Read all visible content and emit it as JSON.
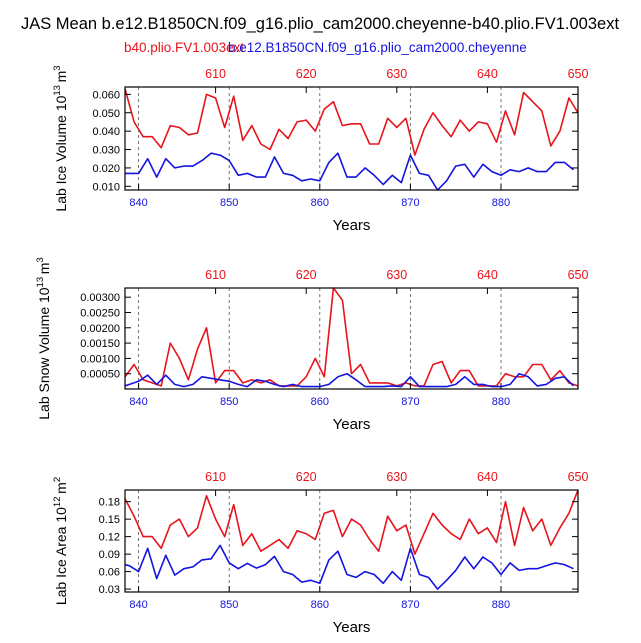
{
  "figure": {
    "title": "JAS Mean b.e12.B1850CN.f09_g16.plio_cam2000.cheyenne-b40.plio.FV1.003ext",
    "legend_red": "b40.plio.FV1.003ext",
    "legend_blue": "b.e12.B1850CN.f09_g16.plio_cam2000.cheyenne"
  },
  "colors": {
    "red": "#e8141c",
    "blue": "#1414e0",
    "axis": "#000000",
    "grid": "#555555"
  },
  "chart_data": [
    {
      "type": "line",
      "ylabel_text": "Lab Ice Volume 10",
      "ylabel_exp": "13",
      "ylabel_unit": "m",
      "ylabel_unit_exp": "3",
      "xlabel": "Years",
      "ylim": [
        0.008,
        0.064
      ],
      "yticks": [
        0.01,
        0.02,
        0.03,
        0.04,
        0.05,
        0.06
      ],
      "ytick_labels": [
        "0.010",
        "0.020",
        "0.030",
        "0.040",
        "0.050",
        "0.060"
      ],
      "bottom_xlim": [
        838.5,
        888.5
      ],
      "bottom_xticks": [
        840,
        850,
        860,
        870,
        880
      ],
      "top_xlim": [
        600,
        650
      ],
      "top_xticks": [
        610,
        620,
        630,
        640,
        650
      ],
      "gridlines_x": [
        840,
        850,
        860,
        870,
        880
      ],
      "series": [
        {
          "color": "red",
          "axis": "top",
          "x": [
            600,
            601,
            602,
            603,
            604,
            605,
            606,
            607,
            608,
            609,
            610,
            611,
            612,
            613,
            614,
            615,
            616,
            617,
            618,
            619,
            620,
            621,
            622,
            623,
            624,
            625,
            626,
            627,
            628,
            629,
            630,
            631,
            632,
            633,
            634,
            635,
            636,
            637,
            638,
            639,
            640,
            641,
            642,
            643,
            644,
            645,
            646,
            647,
            648,
            649,
            650
          ],
          "values": [
            0.063,
            0.045,
            0.037,
            0.037,
            0.031,
            0.043,
            0.042,
            0.038,
            0.039,
            0.06,
            0.058,
            0.042,
            0.059,
            0.035,
            0.043,
            0.033,
            0.03,
            0.041,
            0.036,
            0.045,
            0.046,
            0.04,
            0.052,
            0.056,
            0.043,
            0.044,
            0.044,
            0.033,
            0.033,
            0.047,
            0.042,
            0.047,
            0.027,
            0.041,
            0.05,
            0.043,
            0.037,
            0.046,
            0.04,
            0.045,
            0.044,
            0.034,
            0.051,
            0.038,
            0.061,
            0.056,
            0.051,
            0.032,
            0.04,
            0.058,
            0.05
          ]
        },
        {
          "color": "blue",
          "axis": "bottom",
          "x": [
            838.5,
            839,
            840,
            841,
            842,
            843,
            844,
            845,
            846,
            847,
            848,
            849,
            850,
            851,
            852,
            853,
            854,
            855,
            856,
            857,
            858,
            859,
            860,
            861,
            862,
            863,
            864,
            865,
            866,
            867,
            868,
            869,
            870,
            871,
            872,
            873,
            874,
            875,
            876,
            877,
            878,
            879,
            880,
            881,
            882,
            883,
            884,
            885,
            886,
            887,
            888
          ],
          "values": [
            0.017,
            0.017,
            0.017,
            0.025,
            0.015,
            0.025,
            0.02,
            0.021,
            0.021,
            0.024,
            0.028,
            0.027,
            0.024,
            0.016,
            0.017,
            0.015,
            0.015,
            0.026,
            0.017,
            0.016,
            0.013,
            0.014,
            0.013,
            0.023,
            0.028,
            0.015,
            0.015,
            0.02,
            0.016,
            0.011,
            0.016,
            0.012,
            0.027,
            0.017,
            0.016,
            0.008,
            0.013,
            0.021,
            0.022,
            0.015,
            0.022,
            0.018,
            0.016,
            0.019,
            0.018,
            0.02,
            0.018,
            0.018,
            0.023,
            0.023,
            0.019
          ]
        }
      ]
    },
    {
      "type": "line",
      "ylabel_text": "Lab Snow Volume 10",
      "ylabel_exp": "13",
      "ylabel_unit": "m",
      "ylabel_unit_exp": "3",
      "xlabel": "Years",
      "ylim": [
        0.0,
        0.0033
      ],
      "yticks": [
        0.0005,
        0.001,
        0.0015,
        0.002,
        0.0025,
        0.003
      ],
      "ytick_labels": [
        "0.00050",
        "0.00100",
        "0.00150",
        "0.00200",
        "0.00250",
        "0.00300"
      ],
      "bottom_xlim": [
        838.5,
        888.5
      ],
      "bottom_xticks": [
        840,
        850,
        860,
        870,
        880
      ],
      "top_xlim": [
        600,
        650
      ],
      "top_xticks": [
        610,
        620,
        630,
        640,
        650
      ],
      "gridlines_x": [
        840,
        850,
        860,
        870,
        880
      ],
      "series": [
        {
          "color": "red",
          "axis": "top",
          "x": [
            600,
            601,
            602,
            603,
            604,
            605,
            606,
            607,
            608,
            609,
            610,
            611,
            612,
            613,
            614,
            615,
            616,
            617,
            618,
            619,
            620,
            621,
            622,
            623,
            624,
            625,
            626,
            627,
            628,
            629,
            630,
            631,
            632,
            633,
            634,
            635,
            636,
            637,
            638,
            639,
            640,
            641,
            642,
            643,
            644,
            645,
            646,
            647,
            648,
            649,
            650
          ],
          "values": [
            0.0004,
            0.0008,
            0.0003,
            0.0002,
            0.0001,
            0.0015,
            0.001,
            0.0003,
            0.0013,
            0.002,
            0.0002,
            0.0006,
            0.0006,
            0.0002,
            0.0003,
            0.0002,
            0.0003,
            0.0001,
            0.0001,
            0.0001,
            0.0004,
            0.001,
            0.0004,
            0.0033,
            0.0029,
            0.0005,
            0.0008,
            0.0002,
            0.0002,
            0.0002,
            0.0001,
            0.0002,
            0.0001,
            0.0001,
            0.0008,
            0.0009,
            0.0002,
            0.0006,
            0.0006,
            0.0001,
            0.0001,
            0.0001,
            0.0005,
            0.0004,
            0.0004,
            0.0008,
            0.0008,
            0.0003,
            0.0006,
            0.0002,
            0.0001
          ]
        },
        {
          "color": "blue",
          "axis": "bottom",
          "x": [
            838.5,
            839,
            840,
            841,
            842,
            843,
            844,
            845,
            846,
            847,
            848,
            849,
            850,
            851,
            852,
            853,
            854,
            855,
            856,
            857,
            858,
            859,
            860,
            861,
            862,
            863,
            864,
            865,
            866,
            867,
            868,
            869,
            870,
            871,
            872,
            873,
            874,
            875,
            876,
            877,
            878,
            879,
            880,
            881,
            882,
            883,
            884,
            885,
            886,
            887,
            888
          ],
          "values": [
            0.0001,
            0.00015,
            0.00025,
            0.00045,
            0.00015,
            0.00045,
            0.00015,
            8e-05,
            0.00015,
            0.0004,
            0.00035,
            0.0003,
            0.00025,
            0.00015,
            8e-05,
            0.0003,
            0.00025,
            0.00015,
            8e-05,
            0.00015,
            8e-05,
            8e-05,
            8e-05,
            0.00015,
            0.0004,
            0.0005,
            0.0003,
            8e-05,
            8e-05,
            8e-05,
            0.0001,
            8e-05,
            0.0004,
            8e-05,
            8e-05,
            8e-05,
            8e-05,
            0.00015,
            0.0004,
            0.00015,
            0.00015,
            8e-05,
            8e-05,
            0.00015,
            0.0005,
            0.0004,
            0.0001,
            0.00015,
            0.00035,
            0.0004,
            0.0001
          ]
        }
      ]
    },
    {
      "type": "line",
      "ylabel_text": "Lab Ice Area 10",
      "ylabel_exp": "12",
      "ylabel_unit": "m",
      "ylabel_unit_exp": "2",
      "xlabel": "Years",
      "ylim": [
        0.025,
        0.2
      ],
      "yticks": [
        0.03,
        0.06,
        0.09,
        0.12,
        0.15,
        0.18
      ],
      "ytick_labels": [
        "0.03",
        "0.06",
        "0.09",
        "0.12",
        "0.15",
        "0.18"
      ],
      "bottom_xlim": [
        838.5,
        888.5
      ],
      "bottom_xticks": [
        840,
        850,
        860,
        870,
        880
      ],
      "top_xlim": [
        600,
        650
      ],
      "top_xticks": [
        610,
        620,
        630,
        640,
        650
      ],
      "gridlines_x": [
        840,
        850,
        860,
        870,
        880
      ],
      "series": [
        {
          "color": "red",
          "axis": "top",
          "x": [
            600,
            601,
            602,
            603,
            604,
            605,
            606,
            607,
            608,
            609,
            610,
            611,
            612,
            613,
            614,
            615,
            616,
            617,
            618,
            619,
            620,
            621,
            622,
            623,
            624,
            625,
            626,
            627,
            628,
            629,
            630,
            631,
            632,
            633,
            634,
            635,
            636,
            637,
            638,
            639,
            640,
            641,
            642,
            643,
            644,
            645,
            646,
            647,
            648,
            649,
            650
          ],
          "values": [
            0.185,
            0.155,
            0.12,
            0.12,
            0.1,
            0.14,
            0.15,
            0.12,
            0.135,
            0.19,
            0.15,
            0.12,
            0.175,
            0.105,
            0.125,
            0.095,
            0.105,
            0.115,
            0.1,
            0.13,
            0.125,
            0.115,
            0.16,
            0.165,
            0.12,
            0.15,
            0.14,
            0.115,
            0.095,
            0.155,
            0.13,
            0.14,
            0.09,
            0.125,
            0.16,
            0.14,
            0.125,
            0.115,
            0.15,
            0.125,
            0.135,
            0.11,
            0.18,
            0.105,
            0.17,
            0.13,
            0.15,
            0.105,
            0.135,
            0.16,
            0.2
          ]
        },
        {
          "color": "blue",
          "axis": "bottom",
          "x": [
            838.5,
            839,
            840,
            841,
            842,
            843,
            844,
            845,
            846,
            847,
            848,
            849,
            850,
            851,
            852,
            853,
            854,
            855,
            856,
            857,
            858,
            859,
            860,
            861,
            862,
            863,
            864,
            865,
            866,
            867,
            868,
            869,
            870,
            871,
            872,
            873,
            874,
            875,
            876,
            877,
            878,
            879,
            880,
            881,
            882,
            883,
            884,
            885,
            886,
            887,
            888
          ],
          "values": [
            0.072,
            0.07,
            0.06,
            0.1,
            0.048,
            0.088,
            0.054,
            0.065,
            0.068,
            0.08,
            0.082,
            0.105,
            0.075,
            0.065,
            0.074,
            0.066,
            0.072,
            0.086,
            0.06,
            0.055,
            0.042,
            0.045,
            0.04,
            0.08,
            0.095,
            0.055,
            0.05,
            0.06,
            0.055,
            0.04,
            0.06,
            0.045,
            0.1,
            0.055,
            0.05,
            0.03,
            0.045,
            0.062,
            0.085,
            0.065,
            0.085,
            0.075,
            0.055,
            0.075,
            0.062,
            0.065,
            0.065,
            0.07,
            0.075,
            0.072,
            0.065
          ]
        }
      ]
    }
  ]
}
